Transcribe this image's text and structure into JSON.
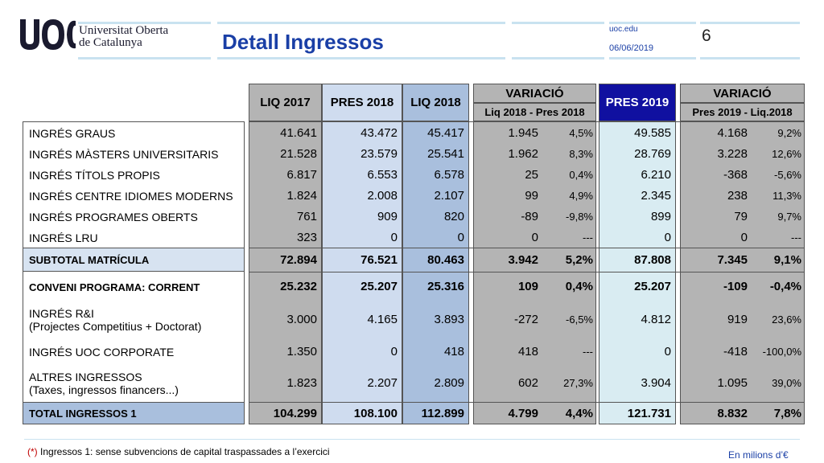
{
  "header": {
    "institution": "Universitat Oberta de Catalunya",
    "institution_line1": "Universitat Oberta",
    "institution_line2": "de Catalunya",
    "logo_text": "uoc",
    "title": "Detall Ingressos",
    "site": "uoc.edu",
    "date": "06/06/2019",
    "page_number": "6"
  },
  "colors": {
    "grey": "#b4b4b4",
    "blue_light": "#cfdcef",
    "blue_header": "#a9bfdd",
    "navy": "#1010a0",
    "cyan_light": "#d9ecf2",
    "row_band": "#d7e3f1",
    "title_blue": "#1a3fa6"
  },
  "table": {
    "headers": {
      "liq2017": "LIQ 2017",
      "pres2018": "PRES 2018",
      "liq2018": "LIQ 2018",
      "variacio1": "VARIACIÓ",
      "variacio1_sub": "Liq 2018 - Pres 2018",
      "pres2019": "PRES 2019",
      "variacio2": "VARIACIÓ",
      "variacio2_sub": "Pres 2019 - Liq.2018"
    },
    "rows": [
      {
        "label": "INGRÉS GRAUS",
        "liq2017": "41.641",
        "pres2018": "43.472",
        "liq2018": "45.417",
        "var1": "1.945",
        "pct1": "4,5%",
        "pres2019": "49.585",
        "var2": "4.168",
        "pct2": "9,2%"
      },
      {
        "label": "INGRÉS MÀSTERS UNIVERSITARIS",
        "liq2017": "21.528",
        "pres2018": "23.579",
        "liq2018": "25.541",
        "var1": "1.962",
        "pct1": "8,3%",
        "pres2019": "28.769",
        "var2": "3.228",
        "pct2": "12,6%"
      },
      {
        "label": "INGRÉS TÍTOLS PROPIS",
        "liq2017": "6.817",
        "pres2018": "6.553",
        "liq2018": "6.578",
        "var1": "25",
        "pct1": "0,4%",
        "pres2019": "6.210",
        "var2": "-368",
        "pct2": "-5,6%"
      },
      {
        "label": "INGRÉS CENTRE IDIOMES MODERNS",
        "liq2017": "1.824",
        "pres2018": "2.008",
        "liq2018": "2.107",
        "var1": "99",
        "pct1": "4,9%",
        "pres2019": "2.345",
        "var2": "238",
        "pct2": "11,3%"
      },
      {
        "label": "INGRÉS PROGRAMES OBERTS",
        "liq2017": "761",
        "pres2018": "909",
        "liq2018": "820",
        "var1": "-89",
        "pct1": "-9,8%",
        "pres2019": "899",
        "var2": "79",
        "pct2": "9,7%"
      },
      {
        "label": "INGRÉS LRU",
        "liq2017": "323",
        "pres2018": "0",
        "liq2018": "0",
        "var1": "0",
        "pct1": "---",
        "pres2019": "0",
        "var2": "0",
        "pct2": "---"
      }
    ],
    "subtotal": {
      "label": "SUBTOTAL MATRÍCULA",
      "liq2017": "72.894",
      "pres2018": "76.521",
      "liq2018": "80.463",
      "var1": "3.942",
      "pct1": "5,2%",
      "pres2019": "87.808",
      "var2": "7.345",
      "pct2": "9,1%"
    },
    "rows2": [
      {
        "label": "CONVENI PROGRAMA: CORRENT",
        "label2": "",
        "liq2017": "25.232",
        "pres2018": "25.207",
        "liq2018": "25.316",
        "var1": "109",
        "pct1": "0,4%",
        "pres2019": "25.207",
        "var2": "-109",
        "pct2": "-0,4%"
      },
      {
        "label": "INGRÉS R&I",
        "label2": "(Projectes Competitius + Doctorat)",
        "liq2017": "3.000",
        "pres2018": "4.165",
        "liq2018": "3.893",
        "var1": "-272",
        "pct1": "-6,5%",
        "pres2019": "4.812",
        "var2": "919",
        "pct2": "23,6%"
      },
      {
        "label": "INGRÉS UOC CORPORATE",
        "label2": "",
        "liq2017": "1.350",
        "pres2018": "0",
        "liq2018": "418",
        "var1": "418",
        "pct1": "---",
        "pres2019": "0",
        "var2": "-418",
        "pct2": "-100,0%"
      },
      {
        "label": "ALTRES INGRESSOS",
        "label2": "(Taxes, ingressos financers...)",
        "liq2017": "1.823",
        "pres2018": "2.207",
        "liq2018": "2.809",
        "var1": "602",
        "pct1": "27,3%",
        "pres2019": "3.904",
        "var2": "1.095",
        "pct2": "39,0%"
      }
    ],
    "total": {
      "label": "TOTAL INGRESSOS 1",
      "liq2017": "104.299",
      "pres2018": "108.100",
      "liq2018": "112.899",
      "var1": "4.799",
      "pct1": "4,4%",
      "pres2019": "121.731",
      "var2": "8.832",
      "pct2": "7,8%"
    }
  },
  "footer": {
    "footnote_marker": "(*)",
    "footnote": " Ingressos 1: sense subvencions de capital traspassades a l’exercici",
    "units": "En milions d’€"
  }
}
